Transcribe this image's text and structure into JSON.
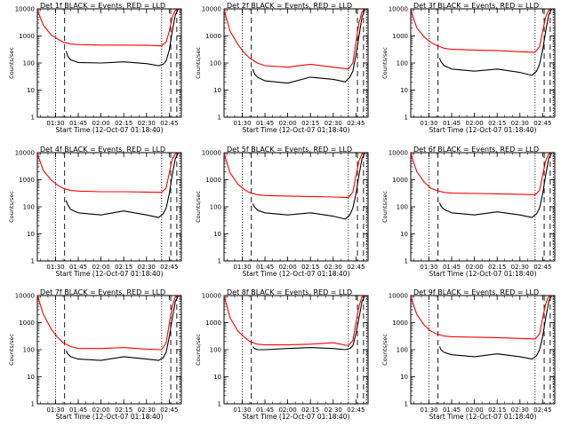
{
  "chart_data": [
    {
      "type": "line",
      "title": "Det 1f BLACK = Events, RED = LLD",
      "xlabel": "Start Time (12-Oct-07 01:18:40)",
      "ylabel": "Counts/sec",
      "yscale": "log",
      "ylim": [
        1,
        10000
      ],
      "xlim": [
        "01:18",
        "02:53"
      ],
      "x_ticks": [
        "01:30",
        "01:45",
        "02:00",
        "02:15",
        "02:30",
        "02:45"
      ],
      "y_ticks": [
        "1",
        "10",
        "100",
        "1000",
        "10000"
      ],
      "markers": {
        "dotted": [
          "01:30",
          "02:40",
          "02:52"
        ],
        "dashed": [
          "01:36",
          "02:46",
          "02:50"
        ]
      },
      "series": [
        {
          "color": "#ff0000",
          "x": [
            "01:18",
            "01:22",
            "01:27",
            "01:31",
            "01:35",
            "01:40",
            "01:45",
            "02:00",
            "02:15",
            "02:30",
            "02:40",
            "02:43",
            "02:45",
            "02:47",
            "02:49",
            "02:51"
          ],
          "values": [
            9000,
            2500,
            1100,
            800,
            600,
            500,
            480,
            460,
            460,
            450,
            430,
            600,
            1500,
            5000,
            9000,
            10000
          ]
        },
        {
          "color": "#000000",
          "x": [
            "01:37",
            "01:38",
            "01:40",
            "01:45",
            "02:00",
            "02:15",
            "02:30",
            "02:38",
            "02:41",
            "02:43",
            "02:45",
            "02:47",
            "02:49",
            "02:51"
          ],
          "values": [
            280,
            180,
            130,
            105,
            100,
            110,
            95,
            80,
            90,
            120,
            300,
            1500,
            6000,
            10000
          ]
        }
      ]
    },
    {
      "type": "line",
      "title": "Det 2f BLACK = Events, RED = LLD",
      "xlabel": "Start Time (12-Oct-07 01:18:40)",
      "ylabel": "Counts/sec",
      "yscale": "log",
      "ylim": [
        1,
        10000
      ],
      "xlim": [
        "01:18",
        "02:53"
      ],
      "x_ticks": [
        "01:30",
        "01:45",
        "02:00",
        "02:15",
        "02:30",
        "02:45"
      ],
      "y_ticks": [
        "1",
        "10",
        "100",
        "1000",
        "10000"
      ],
      "markers": {
        "dotted": [
          "01:30",
          "02:40",
          "02:52"
        ],
        "dashed": [
          "01:36",
          "02:46",
          "02:50"
        ]
      },
      "series": [
        {
          "color": "#ff0000",
          "x": [
            "01:18",
            "01:22",
            "01:27",
            "01:31",
            "01:35",
            "01:40",
            "01:45",
            "02:00",
            "02:15",
            "02:30",
            "02:40",
            "02:43",
            "02:45",
            "02:47",
            "02:49",
            "02:51"
          ],
          "values": [
            9000,
            1500,
            500,
            250,
            150,
            100,
            80,
            70,
            90,
            70,
            60,
            100,
            600,
            3000,
            8000,
            10000
          ]
        },
        {
          "color": "#000000",
          "x": [
            "01:37",
            "01:38",
            "01:40",
            "01:45",
            "02:00",
            "02:15",
            "02:30",
            "02:38",
            "02:41",
            "02:43",
            "02:45",
            "02:47",
            "02:49",
            "02:51"
          ],
          "values": [
            60,
            40,
            30,
            22,
            18,
            30,
            25,
            20,
            30,
            50,
            200,
            1000,
            5000,
            10000
          ]
        }
      ]
    },
    {
      "type": "line",
      "title": "Det 3f BLACK = Events, RED = LLD",
      "xlabel": "Start Time (12-Oct-07 01:18:40)",
      "ylabel": "Counts/sec",
      "yscale": "log",
      "ylim": [
        1,
        10000
      ],
      "xlim": [
        "01:18",
        "02:53"
      ],
      "x_ticks": [
        "01:30",
        "01:45",
        "02:00",
        "02:15",
        "02:30",
        "02:45"
      ],
      "y_ticks": [
        "1",
        "10",
        "100",
        "1000",
        "10000"
      ],
      "markers": {
        "dotted": [
          "01:30",
          "02:40",
          "02:52"
        ],
        "dashed": [
          "01:36",
          "02:46",
          "02:50"
        ]
      },
      "series": [
        {
          "color": "#ff0000",
          "x": [
            "01:18",
            "01:22",
            "01:27",
            "01:31",
            "01:35",
            "01:40",
            "01:45",
            "02:00",
            "02:15",
            "02:30",
            "02:40",
            "02:43",
            "02:45",
            "02:47",
            "02:49",
            "02:51"
          ],
          "values": [
            9000,
            2000,
            900,
            600,
            450,
            350,
            320,
            300,
            290,
            260,
            250,
            400,
            1500,
            5000,
            9000,
            10000
          ]
        },
        {
          "color": "#000000",
          "x": [
            "01:37",
            "01:38",
            "01:40",
            "01:45",
            "02:00",
            "02:15",
            "02:30",
            "02:38",
            "02:41",
            "02:43",
            "02:45",
            "02:47",
            "02:49",
            "02:51"
          ],
          "values": [
            150,
            110,
            80,
            60,
            50,
            60,
            45,
            35,
            50,
            90,
            300,
            1500,
            6000,
            10000
          ]
        }
      ]
    },
    {
      "type": "line",
      "title": "Det 4f BLACK = Events, RED = LLD",
      "xlabel": "Start Time (12-Oct-07 01:18:40)",
      "ylabel": "Counts/sec",
      "yscale": "log",
      "ylim": [
        1,
        10000
      ],
      "xlim": [
        "01:18",
        "02:53"
      ],
      "x_ticks": [
        "01:30",
        "01:45",
        "02:00",
        "02:15",
        "02:30",
        "02:45"
      ],
      "y_ticks": [
        "1",
        "10",
        "100",
        "1000",
        "10000"
      ],
      "markers": {
        "dotted": [
          "01:30",
          "02:40",
          "02:52"
        ],
        "dashed": [
          "01:36",
          "02:46",
          "02:50"
        ]
      },
      "series": [
        {
          "color": "#ff0000",
          "x": [
            "01:18",
            "01:22",
            "01:27",
            "01:31",
            "01:35",
            "01:40",
            "01:45",
            "02:00",
            "02:15",
            "02:30",
            "02:40",
            "02:43",
            "02:45",
            "02:47",
            "02:49",
            "02:51"
          ],
          "values": [
            9000,
            2200,
            1000,
            650,
            480,
            400,
            380,
            360,
            360,
            350,
            340,
            500,
            1800,
            6000,
            9000,
            10000
          ]
        },
        {
          "color": "#000000",
          "x": [
            "01:37",
            "01:38",
            "01:40",
            "01:45",
            "02:00",
            "02:15",
            "02:30",
            "02:38",
            "02:41",
            "02:43",
            "02:45",
            "02:47",
            "02:49",
            "02:51"
          ],
          "values": [
            170,
            120,
            80,
            60,
            50,
            70,
            50,
            40,
            55,
            90,
            300,
            1500,
            6000,
            10000
          ]
        }
      ]
    },
    {
      "type": "line",
      "title": "Det 5f BLACK = Events, RED = LLD",
      "xlabel": "Start Time (12-Oct-07 01:18:40)",
      "ylabel": "Counts/sec",
      "yscale": "log",
      "ylim": [
        1,
        10000
      ],
      "xlim": [
        "01:18",
        "02:53"
      ],
      "x_ticks": [
        "01:30",
        "01:45",
        "02:00",
        "02:15",
        "02:30",
        "02:45"
      ],
      "y_ticks": [
        "1",
        "10",
        "100",
        "1000",
        "10000"
      ],
      "markers": {
        "dotted": [
          "01:30",
          "02:40",
          "02:52"
        ],
        "dashed": [
          "01:36",
          "02:46",
          "02:50"
        ]
      },
      "series": [
        {
          "color": "#ff0000",
          "x": [
            "01:18",
            "01:22",
            "01:27",
            "01:31",
            "01:35",
            "01:40",
            "01:45",
            "02:00",
            "02:15",
            "02:30",
            "02:40",
            "02:43",
            "02:45",
            "02:47",
            "02:49",
            "02:51"
          ],
          "values": [
            9000,
            1800,
            700,
            450,
            330,
            280,
            260,
            250,
            240,
            230,
            220,
            350,
            1400,
            5000,
            9000,
            10000
          ]
        },
        {
          "color": "#000000",
          "x": [
            "01:37",
            "01:38",
            "01:40",
            "01:45",
            "02:00",
            "02:15",
            "02:30",
            "02:38",
            "02:41",
            "02:43",
            "02:45",
            "02:47",
            "02:49",
            "02:51"
          ],
          "values": [
            130,
            100,
            75,
            60,
            50,
            60,
            45,
            35,
            50,
            90,
            300,
            1500,
            6000,
            10000
          ]
        }
      ]
    },
    {
      "type": "line",
      "title": "Det 6f BLACK = Events, RED = LLD",
      "xlabel": "Start Time (12-Oct-07 01:18:40)",
      "ylabel": "Counts/sec",
      "yscale": "log",
      "ylim": [
        1,
        10000
      ],
      "xlim": [
        "01:18",
        "02:53"
      ],
      "x_ticks": [
        "01:30",
        "01:45",
        "02:00",
        "02:15",
        "02:30",
        "02:45"
      ],
      "y_ticks": [
        "1",
        "10",
        "100",
        "1000",
        "10000"
      ],
      "markers": {
        "dotted": [
          "01:30",
          "02:40",
          "02:52"
        ],
        "dashed": [
          "01:36",
          "02:46",
          "02:50"
        ]
      },
      "series": [
        {
          "color": "#ff0000",
          "x": [
            "01:18",
            "01:22",
            "01:27",
            "01:31",
            "01:35",
            "01:40",
            "01:45",
            "02:00",
            "02:15",
            "02:30",
            "02:40",
            "02:43",
            "02:45",
            "02:47",
            "02:49",
            "02:51"
          ],
          "values": [
            9000,
            2000,
            800,
            500,
            400,
            340,
            320,
            310,
            300,
            290,
            280,
            400,
            1500,
            5000,
            9000,
            10000
          ]
        },
        {
          "color": "#000000",
          "x": [
            "01:37",
            "01:38",
            "01:40",
            "01:45",
            "02:00",
            "02:15",
            "02:30",
            "02:38",
            "02:41",
            "02:43",
            "02:45",
            "02:47",
            "02:49",
            "02:51"
          ],
          "values": [
            140,
            105,
            80,
            60,
            50,
            65,
            50,
            40,
            55,
            90,
            300,
            1500,
            6000,
            10000
          ]
        }
      ]
    },
    {
      "type": "line",
      "title": "Det 7f BLACK = Events, RED = LLD",
      "xlabel": "Start Time (12-Oct-07 01:18:40)",
      "ylabel": "Counts/sec",
      "yscale": "log",
      "ylim": [
        1,
        10000
      ],
      "xlim": [
        "01:18",
        "02:53"
      ],
      "x_ticks": [
        "01:30",
        "01:45",
        "02:00",
        "02:15",
        "02:30",
        "02:45"
      ],
      "y_ticks": [
        "1",
        "10",
        "100",
        "1000",
        "10000"
      ],
      "markers": {
        "dotted": [
          "01:30",
          "02:40",
          "02:52"
        ],
        "dashed": [
          "01:36",
          "02:46",
          "02:50"
        ]
      },
      "series": [
        {
          "color": "#ff0000",
          "x": [
            "01:18",
            "01:22",
            "01:27",
            "01:31",
            "01:35",
            "01:40",
            "01:45",
            "02:00",
            "02:15",
            "02:30",
            "02:40",
            "02:43",
            "02:45",
            "02:47",
            "02:49",
            "02:51"
          ],
          "values": [
            10000,
            2000,
            600,
            300,
            180,
            130,
            110,
            110,
            120,
            105,
            100,
            180,
            900,
            4000,
            9000,
            10000
          ]
        },
        {
          "color": "#000000",
          "x": [
            "01:37",
            "01:38",
            "01:40",
            "01:45",
            "02:00",
            "02:15",
            "02:30",
            "02:38",
            "02:41",
            "02:43",
            "02:45",
            "02:47",
            "02:49",
            "02:51"
          ],
          "values": [
            90,
            70,
            55,
            45,
            40,
            55,
            45,
            40,
            50,
            80,
            300,
            1500,
            6000,
            10000
          ]
        }
      ]
    },
    {
      "type": "line",
      "title": "Det 8f BLACK = Events, RED = LLD",
      "xlabel": "Start Time (12-Oct-07 01:18:40)",
      "ylabel": "Counts/sec",
      "yscale": "log",
      "ylim": [
        1,
        10000
      ],
      "xlim": [
        "01:18",
        "02:53"
      ],
      "x_ticks": [
        "01:30",
        "01:45",
        "02:00",
        "02:15",
        "02:30",
        "02:45"
      ],
      "y_ticks": [
        "1",
        "10",
        "100",
        "1000",
        "10000"
      ],
      "markers": {
        "dotted": [
          "01:30",
          "02:40",
          "02:52"
        ],
        "dashed": [
          "01:36",
          "02:46",
          "02:50"
        ]
      },
      "series": [
        {
          "color": "#ff0000",
          "x": [
            "01:18",
            "01:22",
            "01:27",
            "01:31",
            "01:35",
            "01:40",
            "01:45",
            "02:00",
            "02:15",
            "02:30",
            "02:40",
            "02:43",
            "02:45",
            "02:47",
            "02:49",
            "02:51"
          ],
          "values": [
            10000,
            1500,
            500,
            300,
            200,
            160,
            150,
            150,
            160,
            180,
            140,
            220,
            1000,
            4000,
            9000,
            10000
          ]
        },
        {
          "color": "#000000",
          "x": [
            "01:37",
            "01:38",
            "01:40",
            "01:45",
            "02:00",
            "02:15",
            "02:30",
            "02:38",
            "02:41",
            "02:43",
            "02:45",
            "02:47",
            "02:49",
            "02:51"
          ],
          "values": [
            130,
            110,
            100,
            100,
            110,
            120,
            110,
            100,
            110,
            140,
            400,
            1500,
            6000,
            10000
          ]
        }
      ]
    },
    {
      "type": "line",
      "title": "Det 9f BLACK = Events, RED = LLD",
      "xlabel": "Start Time (12-Oct-07 01:18:40)",
      "ylabel": "Counts/sec",
      "yscale": "log",
      "ylim": [
        1,
        10000
      ],
      "xlim": [
        "01:18",
        "02:53"
      ],
      "x_ticks": [
        "01:30",
        "01:45",
        "02:00",
        "02:15",
        "02:30",
        "02:45"
      ],
      "y_ticks": [
        "1",
        "10",
        "100",
        "1000",
        "10000"
      ],
      "markers": {
        "dotted": [
          "01:30",
          "02:40",
          "02:52"
        ],
        "dashed": [
          "01:36",
          "02:46",
          "02:50"
        ]
      },
      "series": [
        {
          "color": "#ff0000",
          "x": [
            "01:18",
            "01:22",
            "01:27",
            "01:31",
            "01:35",
            "01:40",
            "01:45",
            "02:00",
            "02:15",
            "02:30",
            "02:40",
            "02:43",
            "02:45",
            "02:47",
            "02:49",
            "02:51"
          ],
          "values": [
            9000,
            2000,
            800,
            500,
            380,
            320,
            300,
            290,
            280,
            260,
            250,
            380,
            1500,
            5000,
            9000,
            10000
          ]
        },
        {
          "color": "#000000",
          "x": [
            "01:37",
            "01:38",
            "01:40",
            "01:45",
            "02:00",
            "02:15",
            "02:30",
            "02:38",
            "02:41",
            "02:43",
            "02:45",
            "02:47",
            "02:49",
            "02:51"
          ],
          "values": [
            130,
            100,
            80,
            65,
            55,
            70,
            55,
            45,
            60,
            100,
            300,
            1500,
            6000,
            10000
          ]
        }
      ]
    }
  ]
}
